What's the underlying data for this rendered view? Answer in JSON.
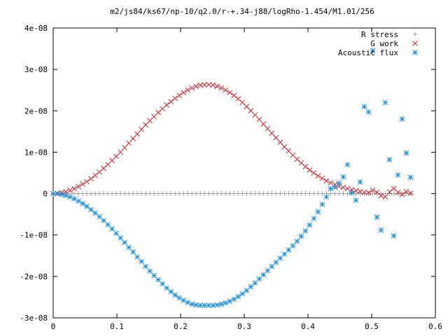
{
  "chart_data": {
    "type": "scatter",
    "title": "m2/js84/ks67/np-10/q2.0/r-+.34-j88/logRho-1.454/M1.01/256",
    "xlabel": "",
    "ylabel": "",
    "xlim": [
      0,
      0.6
    ],
    "ylim": [
      -3e-08,
      4e-08
    ],
    "x_ticks": [
      0,
      0.1,
      0.2,
      0.3,
      0.4,
      0.5,
      0.6
    ],
    "x_tick_labels": [
      "0",
      "0.1",
      "0.2",
      "0.3",
      "0.4",
      "0.5",
      "0.6"
    ],
    "y_ticks": [
      -3e-08,
      -2e-08,
      -1e-08,
      0,
      1e-08,
      2e-08,
      3e-08,
      4e-08
    ],
    "y_tick_labels": [
      "-3e-08",
      "-2e-08",
      "-1e-08",
      "0",
      "1e-08",
      "2e-08",
      "3e-08",
      "4e-08"
    ],
    "grid": false,
    "legend_position": "top-right",
    "series": [
      {
        "name": "R stress",
        "marker": "plus",
        "color": "#a0a0a0",
        "x": [
          0,
          0.0066,
          0.0132,
          0.0198,
          0.0264,
          0.033,
          0.0396,
          0.0462,
          0.0528,
          0.0594,
          0.066,
          0.0726,
          0.0792,
          0.0858,
          0.0924,
          0.099,
          0.1056,
          0.1122,
          0.1188,
          0.1254,
          0.132,
          0.1386,
          0.1452,
          0.1518,
          0.1584,
          0.165,
          0.1716,
          0.1782,
          0.1848,
          0.1914,
          0.198,
          0.2046,
          0.2112,
          0.2178,
          0.2244,
          0.231,
          0.2376,
          0.2442,
          0.2508,
          0.2574,
          0.264,
          0.2706,
          0.2772,
          0.2838,
          0.2904,
          0.297,
          0.3036,
          0.3102,
          0.3168,
          0.3234,
          0.33,
          0.3366,
          0.3432,
          0.3498,
          0.3564,
          0.363,
          0.3696,
          0.3762,
          0.3828,
          0.3894,
          0.396,
          0.4026,
          0.4092,
          0.4158,
          0.4224,
          0.429,
          0.4356,
          0.4422,
          0.4488,
          0.4554,
          0.462,
          0.4686,
          0.4752,
          0.4818,
          0.4884,
          0.495,
          0.5016,
          0.5082,
          0.5148,
          0.5214,
          0.528,
          0.5346,
          0.5412,
          0.5478,
          0.5544,
          0.561
        ],
        "y": [
          0,
          0,
          0,
          0,
          0,
          0,
          0,
          0,
          0,
          0,
          0,
          0,
          0,
          0,
          0,
          0,
          0,
          0,
          0,
          0,
          0,
          0,
          0,
          0,
          0,
          0,
          0,
          0,
          0,
          0,
          0,
          0,
          0,
          0,
          0,
          0,
          0,
          0,
          0,
          0,
          0,
          0,
          0,
          0,
          0,
          0,
          0,
          0,
          0,
          0,
          0,
          0,
          0,
          0,
          0,
          0,
          0,
          0,
          0,
          0,
          0,
          0,
          0,
          0,
          0,
          0,
          0,
          0,
          0,
          0,
          0,
          0,
          0,
          0,
          0,
          0,
          0,
          0,
          0,
          0,
          0,
          0,
          0,
          0,
          0,
          0
        ]
      },
      {
        "name": "G work",
        "marker": "x",
        "color": "#c8202a",
        "x": [
          0,
          0.0066,
          0.0132,
          0.0198,
          0.0264,
          0.033,
          0.0396,
          0.0462,
          0.0528,
          0.0594,
          0.066,
          0.0726,
          0.0792,
          0.0858,
          0.0924,
          0.099,
          0.1056,
          0.1122,
          0.1188,
          0.1254,
          0.132,
          0.1386,
          0.1452,
          0.1518,
          0.1584,
          0.165,
          0.1716,
          0.1782,
          0.1848,
          0.1914,
          0.198,
          0.2046,
          0.2112,
          0.2178,
          0.2244,
          0.231,
          0.2376,
          0.2442,
          0.2508,
          0.2574,
          0.264,
          0.2706,
          0.2772,
          0.2838,
          0.2904,
          0.297,
          0.3036,
          0.3102,
          0.3168,
          0.3234,
          0.33,
          0.3366,
          0.3432,
          0.3498,
          0.3564,
          0.363,
          0.3696,
          0.3762,
          0.3828,
          0.3894,
          0.396,
          0.4026,
          0.4092,
          0.4158,
          0.4224,
          0.429,
          0.4356,
          0.4422,
          0.4488,
          0.4554,
          0.462,
          0.4686,
          0.4752,
          0.4818,
          0.4884,
          0.495,
          0.5016,
          0.5082,
          0.5148,
          0.5214,
          0.528,
          0.5346,
          0.5412,
          0.5478,
          0.5544,
          0.561
        ],
        "y": [
          0,
          5e-11,
          2.3e-10,
          4.8e-10,
          8.1e-10,
          1.2e-09,
          1.7e-09,
          2.3e-09,
          2.9e-09,
          3.6e-09,
          4.4e-09,
          5.2e-09,
          6.1e-09,
          7e-09,
          8e-09,
          9e-09,
          1e-08,
          1.11e-08,
          1.22e-08,
          1.33e-08,
          1.44e-08,
          1.55e-08,
          1.66e-08,
          1.76e-08,
          1.86e-08,
          1.96e-08,
          2.05e-08,
          2.14e-08,
          2.22e-08,
          2.3e-08,
          2.37e-08,
          2.44e-08,
          2.5e-08,
          2.55e-08,
          2.59e-08,
          2.62e-08,
          2.63e-08,
          2.63e-08,
          2.62e-08,
          2.59e-08,
          2.55e-08,
          2.5e-08,
          2.44e-08,
          2.37e-08,
          2.29e-08,
          2.2e-08,
          2.1e-08,
          2e-08,
          1.9e-08,
          1.79e-08,
          1.68e-08,
          1.57e-08,
          1.46e-08,
          1.35e-08,
          1.24e-08,
          1.13e-08,
          1.03e-08,
          9.3e-09,
          8.3e-09,
          7.4e-09,
          6.5e-09,
          5.7e-09,
          5e-09,
          4.3e-09,
          3.7e-09,
          3.1e-09,
          2.6e-09,
          2.2e-09,
          1.8e-09,
          1.5e-09,
          1.2e-09,
          9e-10,
          7e-10,
          5e-10,
          3e-10,
          2e-10,
          8e-10,
          3e-10,
          -5e-10,
          -8e-10,
          4e-10,
          1.2e-09,
          3e-10,
          -2e-10,
          5e-10,
          1e-10
        ]
      },
      {
        "name": "Acoustic flux",
        "marker": "star",
        "color": "#1f8fd8",
        "x": [
          0,
          0.0066,
          0.0132,
          0.0198,
          0.0264,
          0.033,
          0.0396,
          0.0462,
          0.0528,
          0.0594,
          0.066,
          0.0726,
          0.0792,
          0.0858,
          0.0924,
          0.099,
          0.1056,
          0.1122,
          0.1188,
          0.1254,
          0.132,
          0.1386,
          0.1452,
          0.1518,
          0.1584,
          0.165,
          0.1716,
          0.1782,
          0.1848,
          0.1914,
          0.198,
          0.2046,
          0.2112,
          0.2178,
          0.2244,
          0.231,
          0.2376,
          0.2442,
          0.2508,
          0.2574,
          0.264,
          0.2706,
          0.2772,
          0.2838,
          0.2904,
          0.297,
          0.3036,
          0.3102,
          0.3168,
          0.3234,
          0.33,
          0.3366,
          0.3432,
          0.3498,
          0.3564,
          0.363,
          0.3696,
          0.3762,
          0.3828,
          0.3894,
          0.396,
          0.4026,
          0.4092,
          0.4158,
          0.4224,
          0.429,
          0.4356,
          0.4422,
          0.4488,
          0.4554,
          0.462,
          0.4686,
          0.4752,
          0.4818,
          0.4884,
          0.495,
          0.5016,
          0.5082,
          0.5148,
          0.5214,
          0.528,
          0.5346,
          0.5412,
          0.5478,
          0.5544,
          0.561
        ],
        "y": [
          0,
          -5e-11,
          -2e-10,
          -4.5e-10,
          -8e-10,
          -1.25e-09,
          -1.8e-09,
          -2.4e-09,
          -3.1e-09,
          -3.9e-09,
          -4.7e-09,
          -5.6e-09,
          -6.5e-09,
          -7.5e-09,
          -8.5e-09,
          -9.6e-09,
          -1.07e-08,
          -1.18e-08,
          -1.3e-08,
          -1.41e-08,
          -1.53e-08,
          -1.64e-08,
          -1.76e-08,
          -1.87e-08,
          -1.98e-08,
          -2.08e-08,
          -2.18e-08,
          -2.28e-08,
          -2.37e-08,
          -2.45e-08,
          -2.52e-08,
          -2.58e-08,
          -2.63e-08,
          -2.67e-08,
          -2.69e-08,
          -2.7e-08,
          -2.7e-08,
          -2.7e-08,
          -2.7e-08,
          -2.69e-08,
          -2.67e-08,
          -2.64e-08,
          -2.6e-08,
          -2.55e-08,
          -2.49e-08,
          -2.42e-08,
          -2.34e-08,
          -2.25e-08,
          -2.16e-08,
          -2.06e-08,
          -1.96e-08,
          -1.86e-08,
          -1.76e-08,
          -1.66e-08,
          -1.56e-08,
          -1.46e-08,
          -1.36e-08,
          -1.26e-08,
          -1.15e-08,
          -1.03e-08,
          -9e-09,
          -7.6e-09,
          -6e-09,
          -4.4e-09,
          -2.6e-09,
          -8e-10,
          1.2e-09,
          1.5e-09,
          2.5e-09,
          4e-09,
          7e-09,
          2e-10,
          -1.6e-09,
          2.8e-09,
          2.1e-08,
          1.97e-08,
          3.45e-08,
          -5.7e-09,
          -8.8e-09,
          2.2e-08,
          8.2e-09,
          -1.02e-08,
          4.5e-09,
          1.8e-08,
          9.8e-09,
          3.9e-09
        ]
      }
    ]
  }
}
